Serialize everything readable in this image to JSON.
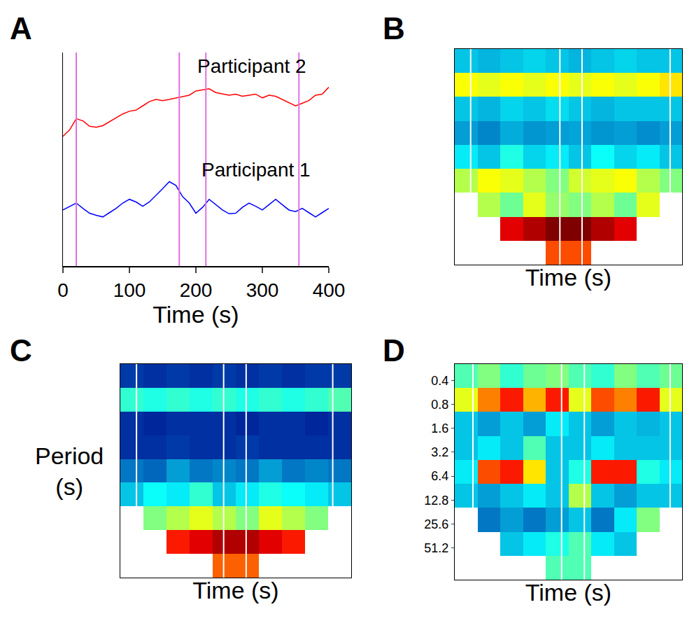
{
  "chart_data": [
    {
      "type": "line",
      "title": "A",
      "xlabel": "Time (s)",
      "xlim": [
        0,
        400
      ],
      "xticks": [
        0,
        100,
        200,
        300,
        400
      ],
      "ylim": [
        0,
        4
      ],
      "tick_labels": "x",
      "x": [
        0,
        10,
        20,
        30,
        40,
        50,
        60,
        70,
        80,
        90,
        100,
        110,
        120,
        130,
        140,
        150,
        160,
        170,
        180,
        190,
        200,
        210,
        220,
        230,
        240,
        250,
        260,
        270,
        280,
        290,
        300,
        310,
        320,
        330,
        340,
        350,
        360,
        370,
        380,
        390,
        400
      ],
      "series": [
        {
          "color": "#ff0000",
          "values": [
            2.43,
            2.55,
            2.76,
            2.72,
            2.62,
            2.6,
            2.63,
            2.7,
            2.78,
            2.85,
            2.9,
            2.92,
            3.0,
            3.08,
            3.12,
            3.1,
            3.12,
            3.15,
            3.18,
            3.2,
            3.28,
            3.3,
            3.32,
            3.25,
            3.22,
            3.2,
            3.22,
            3.18,
            3.2,
            3.22,
            3.15,
            3.2,
            3.18,
            3.12,
            3.05,
            3.0,
            3.05,
            3.1,
            3.2,
            3.22,
            3.35
          ]
        },
        {
          "color": "#0000ff",
          "values": [
            1.05,
            1.12,
            1.18,
            1.08,
            0.99,
            0.95,
            0.92,
            1.0,
            1.08,
            1.18,
            1.25,
            1.2,
            1.12,
            1.2,
            1.32,
            1.45,
            1.58,
            1.51,
            1.3,
            1.18,
            0.99,
            1.1,
            1.25,
            1.15,
            1.05,
            0.98,
            0.99,
            1.1,
            1.18,
            1.12,
            1.05,
            1.15,
            1.25,
            1.15,
            1.05,
            1.02,
            1.08,
            1.0,
            0.92,
            1.0,
            1.08
          ]
        }
      ],
      "annotations": [
        {
          "text": "Participant 2",
          "x": 284,
          "y": 3.75
        },
        {
          "text": "Participant 1",
          "x": 290,
          "y": 1.8
        }
      ],
      "vlines": {
        "x": [
          20,
          175,
          215,
          355
        ],
        "color": "#e070e0"
      }
    },
    {
      "type": "heatmap",
      "title": "B",
      "xlabel": "Time (s)",
      "xlim": [
        0,
        400
      ],
      "ylim": [
        0.25,
        128
      ],
      "log": "y",
      "tick_labels": false,
      "x": [
        0,
        40,
        80,
        120,
        160,
        200,
        240,
        280,
        320,
        360,
        400
      ],
      "y": [
        0.25,
        0.5,
        1,
        2,
        4,
        8,
        16,
        32,
        64,
        128
      ],
      "zlim": [
        0,
        1
      ],
      "z": [
        [
          0.3,
          0.28,
          0.3,
          0.32,
          0.3,
          0.28,
          0.3,
          0.32,
          0.3,
          0.3
        ],
        [
          0.62,
          0.6,
          0.62,
          0.6,
          0.62,
          0.6,
          0.62,
          0.6,
          0.62,
          0.65
        ],
        [
          0.3,
          0.28,
          0.32,
          0.3,
          0.33,
          0.3,
          0.28,
          0.3,
          0.3,
          0.3
        ],
        [
          0.25,
          0.22,
          0.27,
          0.24,
          0.25,
          0.26,
          0.24,
          0.25,
          0.23,
          0.25
        ],
        [
          0.35,
          0.3,
          0.4,
          0.32,
          0.35,
          0.3,
          0.38,
          0.32,
          0.35,
          0.3
        ],
        [
          0.55,
          0.62,
          0.6,
          0.55,
          0.5,
          0.58,
          0.6,
          0.62,
          0.55,
          0.5
        ],
        [
          null,
          0.55,
          0.48,
          0.6,
          0.52,
          0.5,
          0.55,
          0.48,
          0.6,
          null
        ],
        [
          null,
          null,
          0.9,
          0.95,
          1.0,
          1.0,
          0.95,
          0.9,
          null,
          null
        ],
        [
          null,
          null,
          null,
          null,
          0.8,
          0.8,
          null,
          null,
          null,
          null
        ]
      ],
      "vlines": {
        "x": [
          28,
          185,
          224,
          379
        ],
        "color": "#ffffff"
      }
    },
    {
      "type": "heatmap",
      "title": "C",
      "xlabel": "Time (s)",
      "ylabel": "Period (s)",
      "xlim": [
        0,
        400
      ],
      "ylim": [
        0.25,
        128
      ],
      "log": "y",
      "tick_labels": false,
      "x": [
        0,
        40,
        80,
        120,
        160,
        200,
        240,
        280,
        320,
        360,
        400
      ],
      "y": [
        0.25,
        0.5,
        1,
        2,
        4,
        8,
        16,
        32,
        64,
        128
      ],
      "zlim": [
        0,
        1
      ],
      "z": [
        [
          0.12,
          0.1,
          0.12,
          0.1,
          0.12,
          0.1,
          0.12,
          0.1,
          0.12,
          0.12
        ],
        [
          0.42,
          0.4,
          0.42,
          0.4,
          0.42,
          0.4,
          0.42,
          0.4,
          0.42,
          0.45
        ],
        [
          0.1,
          0.08,
          0.1,
          0.1,
          0.1,
          0.08,
          0.1,
          0.1,
          0.08,
          0.1
        ],
        [
          0.1,
          0.1,
          0.12,
          0.1,
          0.1,
          0.12,
          0.1,
          0.1,
          0.1,
          0.1
        ],
        [
          0.2,
          0.18,
          0.25,
          0.2,
          0.22,
          0.2,
          0.25,
          0.2,
          0.22,
          0.2
        ],
        [
          0.3,
          0.38,
          0.35,
          0.42,
          0.3,
          0.35,
          0.4,
          0.38,
          0.35,
          0.3
        ],
        [
          null,
          0.5,
          0.55,
          0.6,
          0.55,
          0.5,
          0.6,
          0.55,
          0.5,
          null
        ],
        [
          null,
          null,
          0.85,
          0.9,
          0.95,
          0.95,
          0.9,
          0.85,
          null,
          null
        ],
        [
          null,
          null,
          null,
          null,
          0.78,
          0.78,
          null,
          null,
          null,
          null
        ]
      ],
      "vlines": {
        "x": [
          28,
          179,
          218,
          368
        ],
        "color": "#ffffff"
      }
    },
    {
      "type": "heatmap",
      "title": "D",
      "xlabel": "Time (s)",
      "xlim": [
        0,
        400
      ],
      "ylim": [
        0.25,
        128
      ],
      "log": "y",
      "tick_labels": "y",
      "yticks": [
        0.4,
        0.8,
        1.6,
        3.2,
        6.4,
        12.8,
        25.6,
        51.2
      ],
      "x": [
        0,
        40,
        80,
        120,
        160,
        200,
        240,
        280,
        320,
        360,
        400
      ],
      "y": [
        0.25,
        0.5,
        1,
        2,
        4,
        8,
        16,
        32,
        64,
        128
      ],
      "zlim": [
        0,
        1
      ],
      "z": [
        [
          0.45,
          0.5,
          0.42,
          0.48,
          0.5,
          0.45,
          0.42,
          0.5,
          0.45,
          0.48
        ],
        [
          0.6,
          0.75,
          0.85,
          0.7,
          0.85,
          0.6,
          0.8,
          0.75,
          0.85,
          0.6
        ],
        [
          0.3,
          0.25,
          0.3,
          0.25,
          0.35,
          0.3,
          0.25,
          0.3,
          0.28,
          0.3
        ],
        [
          0.3,
          0.35,
          0.3,
          0.45,
          0.3,
          0.3,
          0.35,
          0.3,
          0.3,
          0.3
        ],
        [
          0.35,
          0.8,
          0.85,
          0.65,
          0.3,
          0.4,
          0.85,
          0.85,
          0.4,
          0.35
        ],
        [
          0.3,
          0.25,
          0.3,
          0.35,
          0.3,
          0.55,
          0.3,
          0.25,
          0.3,
          0.3
        ],
        [
          null,
          0.2,
          0.25,
          0.2,
          0.25,
          0.3,
          0.2,
          0.35,
          0.5,
          null
        ],
        [
          null,
          null,
          0.3,
          0.35,
          0.4,
          0.45,
          0.35,
          0.3,
          null,
          null
        ],
        [
          null,
          null,
          null,
          null,
          0.45,
          0.45,
          null,
          null,
          null,
          null
        ]
      ],
      "vlines": {
        "x": [
          32,
          188,
          228,
          379
        ],
        "color": "#ffffff"
      }
    }
  ]
}
